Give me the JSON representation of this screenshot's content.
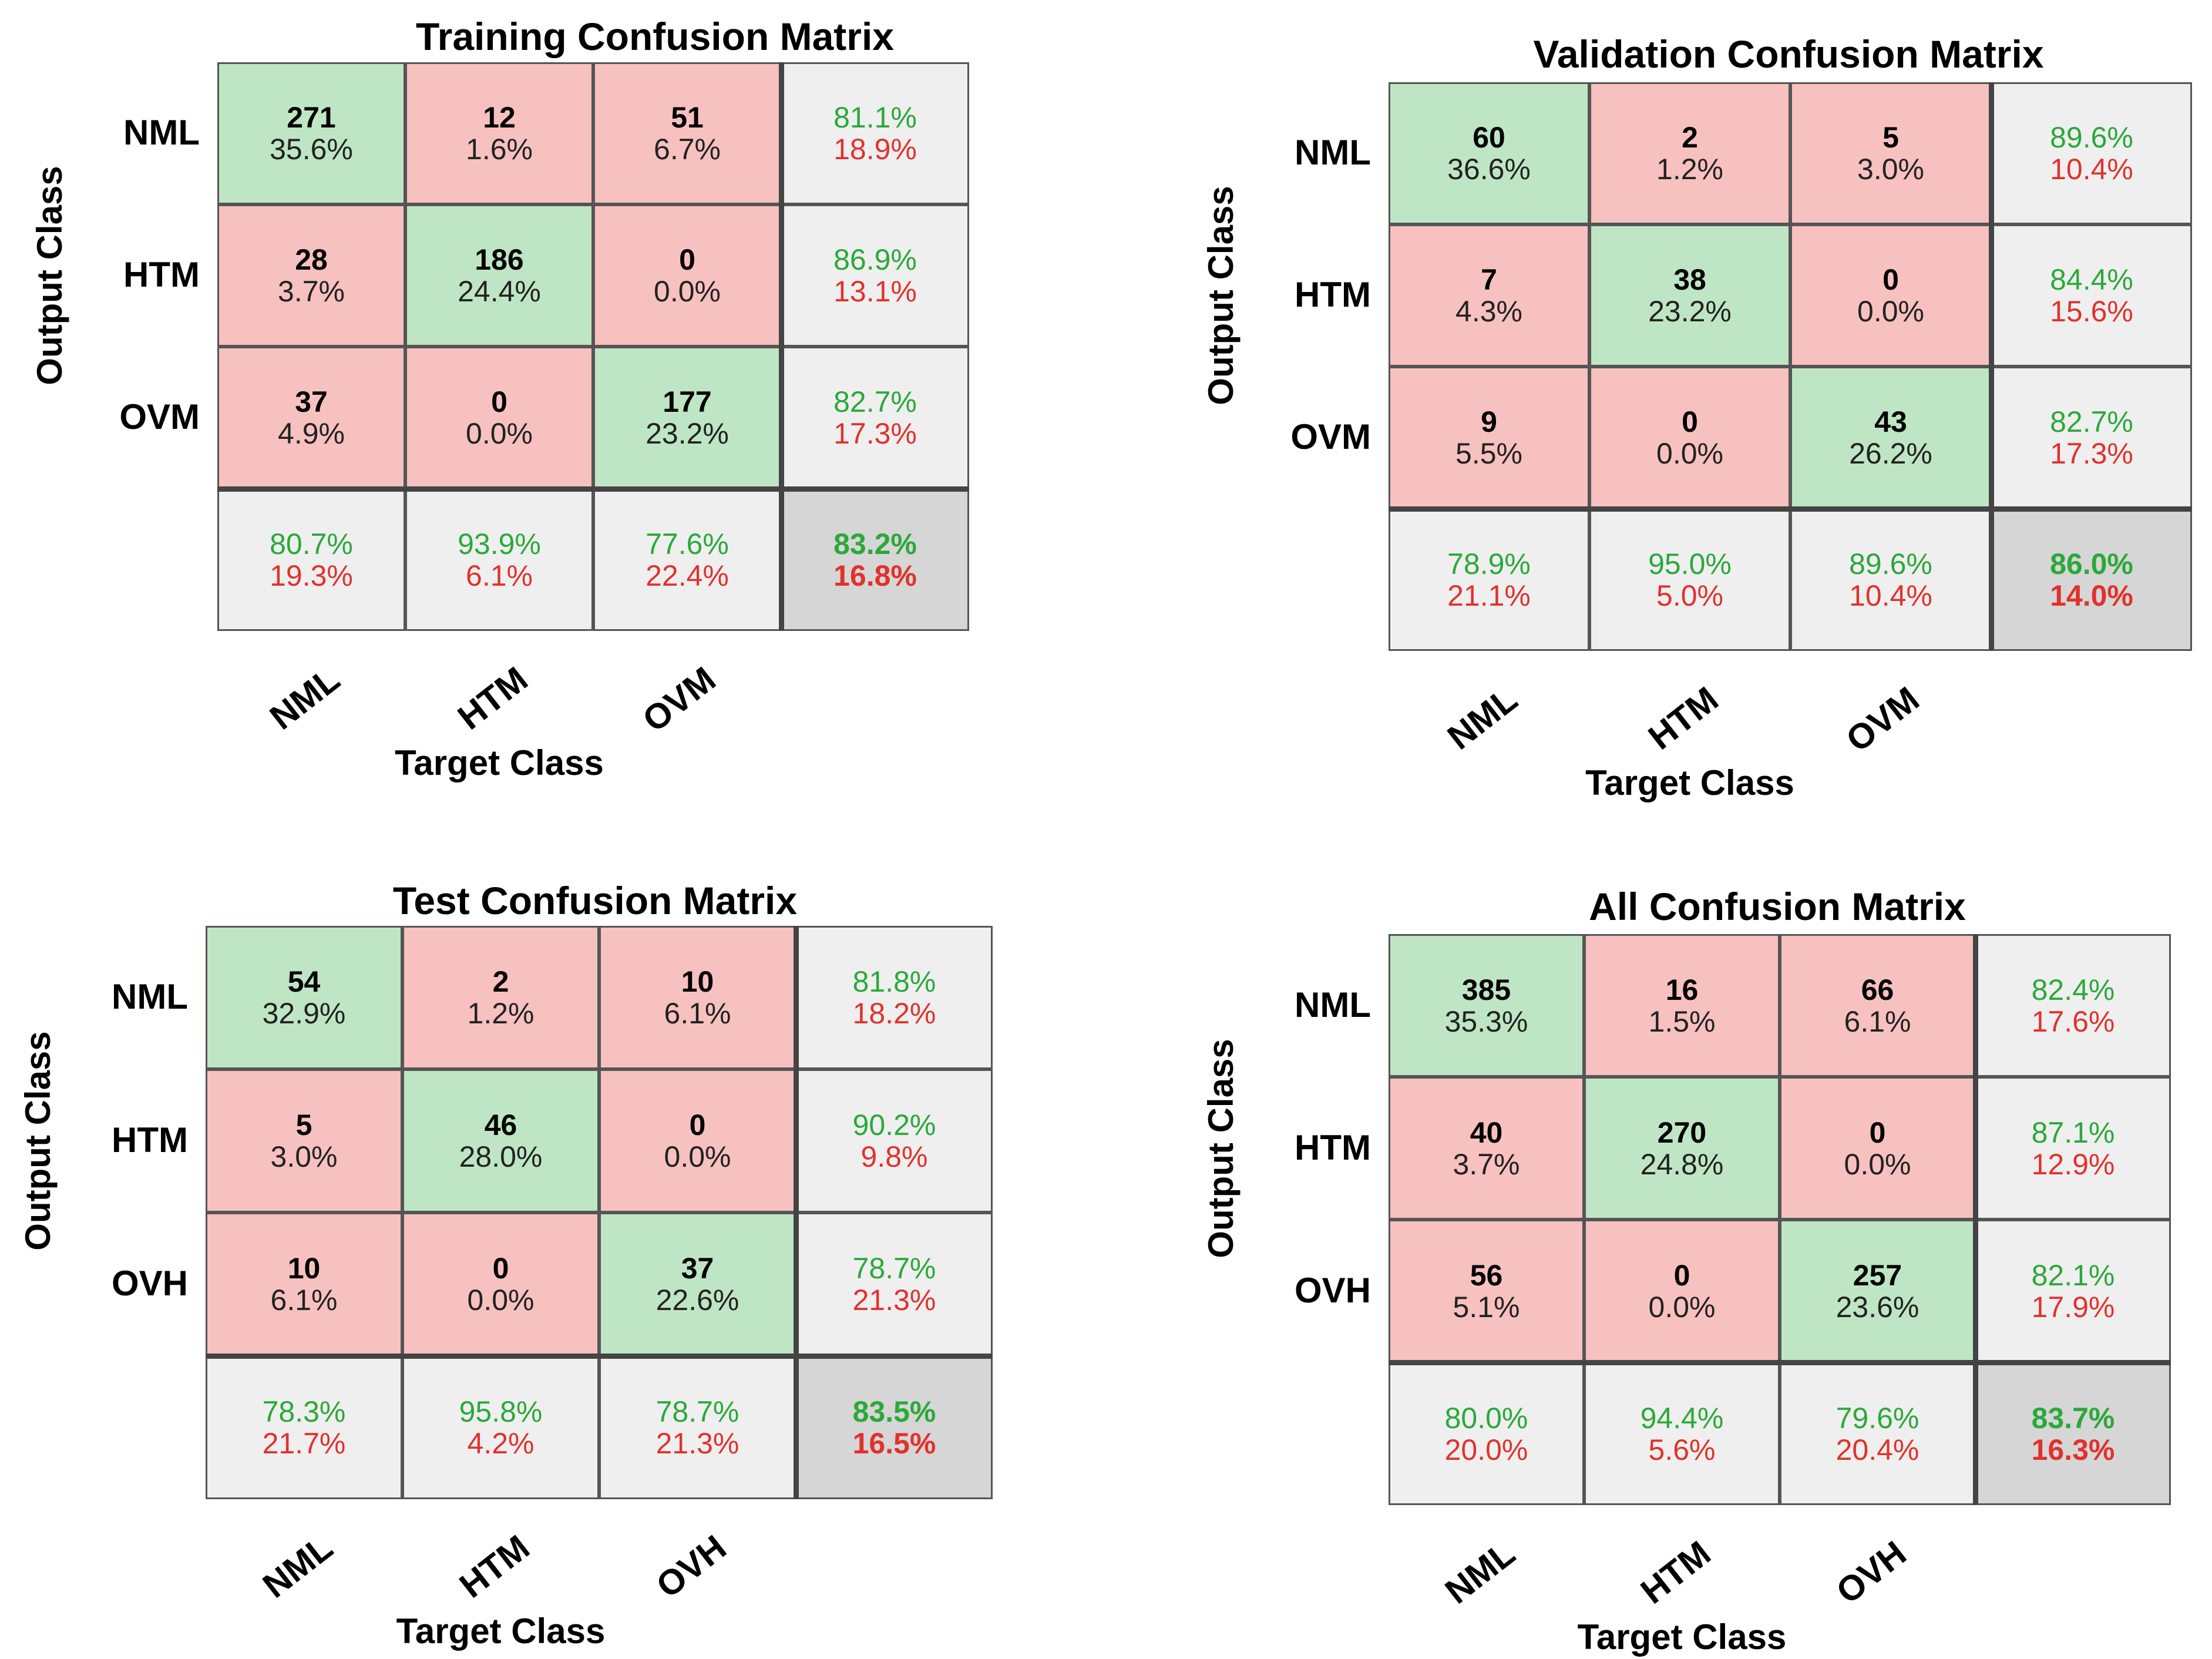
{
  "chart_data": [
    {
      "type": "table",
      "title": "Training Confusion Matrix",
      "xlabel": "Target Class",
      "ylabel": "Output Class",
      "row_labels": [
        "NML",
        "HTM",
        "OVM"
      ],
      "col_labels": [
        "NML",
        "HTM",
        "OVM"
      ],
      "counts": [
        [
          271,
          12,
          51
        ],
        [
          28,
          186,
          0
        ],
        [
          37,
          0,
          177
        ]
      ],
      "percents": [
        [
          "35.6%",
          "1.6%",
          "6.7%"
        ],
        [
          "3.7%",
          "24.4%",
          "0.0%"
        ],
        [
          "4.9%",
          "0.0%",
          "23.2%"
        ]
      ],
      "row_summary": [
        [
          "81.1%",
          "18.9%"
        ],
        [
          "86.9%",
          "13.1%"
        ],
        [
          "82.7%",
          "17.3%"
        ]
      ],
      "col_summary": [
        [
          "80.7%",
          "19.3%"
        ],
        [
          "93.9%",
          "6.1%"
        ],
        [
          "77.6%",
          "22.4%"
        ]
      ],
      "overall": [
        "83.2%",
        "16.8%"
      ]
    },
    {
      "type": "table",
      "title": "Validation Confusion Matrix",
      "xlabel": "Target Class",
      "ylabel": "Output Class",
      "row_labels": [
        "NML",
        "HTM",
        "OVM"
      ],
      "col_labels": [
        "NML",
        "HTM",
        "OVM"
      ],
      "counts": [
        [
          60,
          2,
          5
        ],
        [
          7,
          38,
          0
        ],
        [
          9,
          0,
          43
        ]
      ],
      "percents": [
        [
          "36.6%",
          "1.2%",
          "3.0%"
        ],
        [
          "4.3%",
          "23.2%",
          "0.0%"
        ],
        [
          "5.5%",
          "0.0%",
          "26.2%"
        ]
      ],
      "row_summary": [
        [
          "89.6%",
          "10.4%"
        ],
        [
          "84.4%",
          "15.6%"
        ],
        [
          "82.7%",
          "17.3%"
        ]
      ],
      "col_summary": [
        [
          "78.9%",
          "21.1%"
        ],
        [
          "95.0%",
          "5.0%"
        ],
        [
          "89.6%",
          "10.4%"
        ]
      ],
      "overall": [
        "86.0%",
        "14.0%"
      ]
    },
    {
      "type": "table",
      "title": "Test Confusion Matrix",
      "xlabel": "Target Class",
      "ylabel": "Output Class",
      "row_labels": [
        "NML",
        "HTM",
        "OVH"
      ],
      "col_labels": [
        "NML",
        "HTM",
        "OVH"
      ],
      "counts": [
        [
          54,
          2,
          10
        ],
        [
          5,
          46,
          0
        ],
        [
          10,
          0,
          37
        ]
      ],
      "percents": [
        [
          "32.9%",
          "1.2%",
          "6.1%"
        ],
        [
          "3.0%",
          "28.0%",
          "0.0%"
        ],
        [
          "6.1%",
          "0.0%",
          "22.6%"
        ]
      ],
      "row_summary": [
        [
          "81.8%",
          "18.2%"
        ],
        [
          "90.2%",
          "9.8%"
        ],
        [
          "78.7%",
          "21.3%"
        ]
      ],
      "col_summary": [
        [
          "78.3%",
          "21.7%"
        ],
        [
          "95.8%",
          "4.2%"
        ],
        [
          "78.7%",
          "21.3%"
        ]
      ],
      "overall": [
        "83.5%",
        "16.5%"
      ]
    },
    {
      "type": "table",
      "title": "All Confusion Matrix",
      "xlabel": "Target Class",
      "ylabel": "Output Class",
      "row_labels": [
        "NML",
        "HTM",
        "OVH"
      ],
      "col_labels": [
        "NML",
        "HTM",
        "OVH"
      ],
      "counts": [
        [
          385,
          16,
          66
        ],
        [
          40,
          270,
          0
        ],
        [
          56,
          0,
          257
        ]
      ],
      "percents": [
        [
          "35.3%",
          "1.5%",
          "6.1%"
        ],
        [
          "3.7%",
          "24.8%",
          "0.0%"
        ],
        [
          "5.1%",
          "0.0%",
          "23.6%"
        ]
      ],
      "row_summary": [
        [
          "82.4%",
          "17.6%"
        ],
        [
          "87.1%",
          "12.9%"
        ],
        [
          "82.1%",
          "17.9%"
        ]
      ],
      "col_summary": [
        [
          "80.0%",
          "20.0%"
        ],
        [
          "94.4%",
          "5.6%"
        ],
        [
          "79.6%",
          "20.4%"
        ]
      ],
      "overall": [
        "83.7%",
        "16.3%"
      ]
    }
  ]
}
